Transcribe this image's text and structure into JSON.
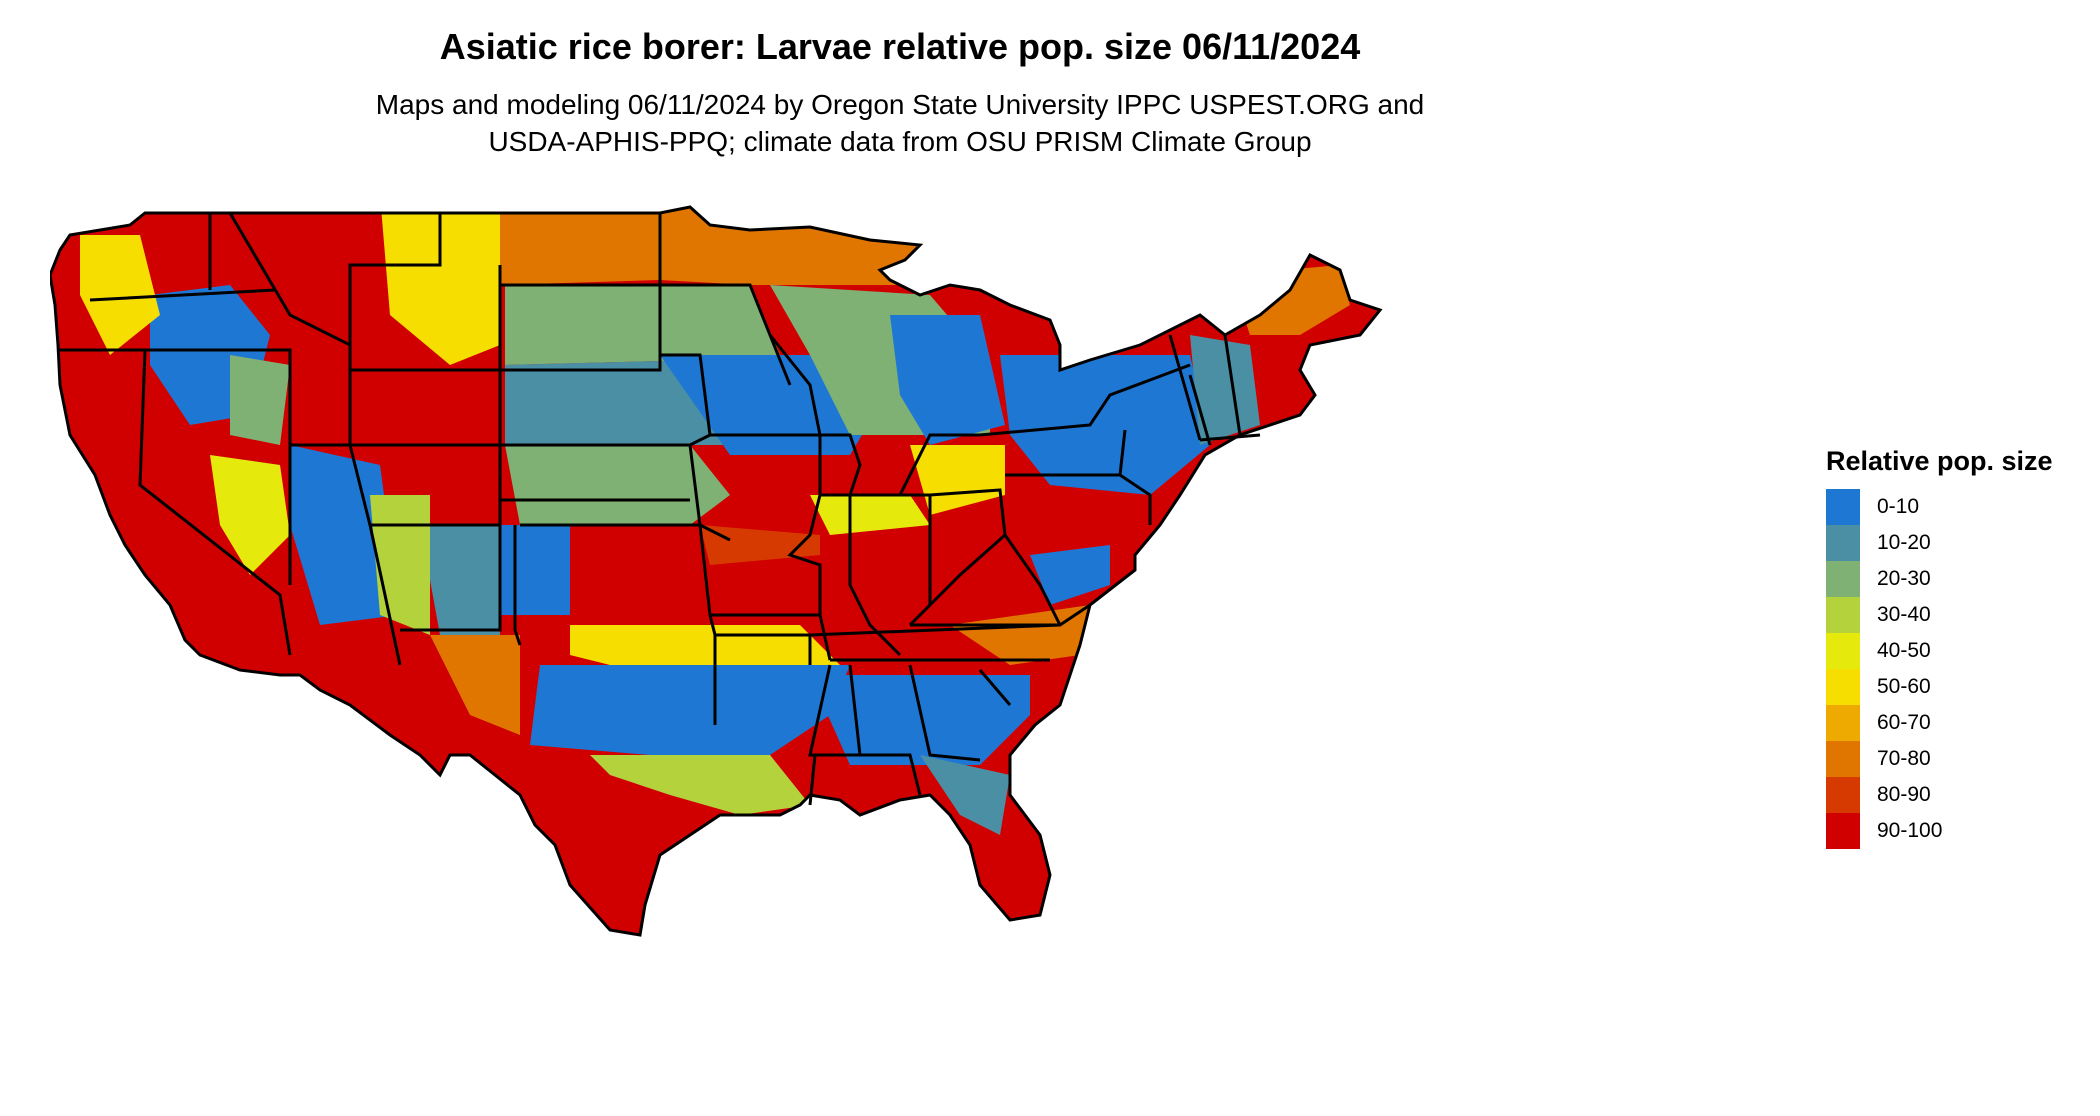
{
  "title": "Asiatic rice borer: Larvae relative pop. size 06/11/2024",
  "subtitle": {
    "line1": "Maps and modeling 06/11/2024 by Oregon State University IPPC USPEST.ORG and",
    "line2": "USDA-APHIS-PPQ; climate data from OSU PRISM Climate Group"
  },
  "legend": {
    "title": "Relative pop. size",
    "items": [
      {
        "label": "0-10",
        "color": "#1f77d4"
      },
      {
        "label": "10-20",
        "color": "#4a8fa4"
      },
      {
        "label": "20-30",
        "color": "#7fb074"
      },
      {
        "label": "30-40",
        "color": "#b4d23c"
      },
      {
        "label": "40-50",
        "color": "#e6ea0c"
      },
      {
        "label": "50-60",
        "color": "#f5de00"
      },
      {
        "label": "60-70",
        "color": "#eeaa00"
      },
      {
        "label": "70-80",
        "color": "#e07600"
      },
      {
        "label": "80-90",
        "color": "#d73a00"
      },
      {
        "label": "90-100",
        "color": "#d10000"
      }
    ]
  },
  "map": {
    "region": "Contiguous United States",
    "icon": "us-states-map"
  }
}
